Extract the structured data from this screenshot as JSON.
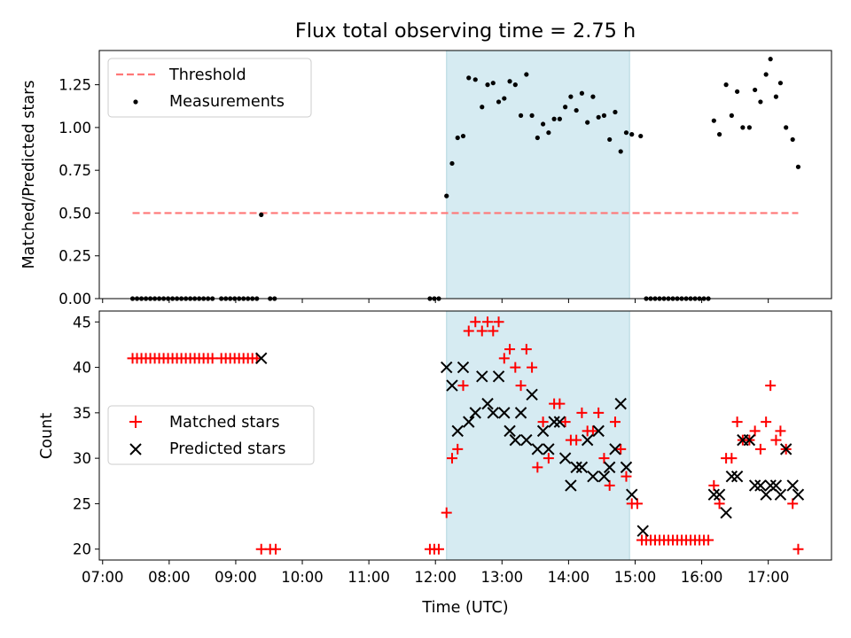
{
  "title": "Flux total observing time = 2.75 h",
  "chart_data": [
    {
      "type": "scatter",
      "panel": "top",
      "ylabel": "Matched/Predicted stars",
      "ylim": [
        0,
        1.45
      ],
      "yticks": [
        0.0,
        0.25,
        0.5,
        0.75,
        1.0,
        1.25
      ],
      "ytick_labels": [
        "0.00",
        "0.25",
        "0.50",
        "0.75",
        "1.00",
        "1.25"
      ],
      "threshold": {
        "name": "Threshold",
        "value": 0.5,
        "x_start": "07:27",
        "x_end": "17:27",
        "color": "#ff7777"
      },
      "shaded_interval": {
        "start": "12:10",
        "end": "14:55",
        "color": "#add8e6"
      },
      "legend": {
        "position": "top-left",
        "items": [
          "Threshold",
          "Measurements"
        ]
      },
      "series": [
        {
          "name": "Measurements",
          "color": "#000000",
          "points": [
            [
              "07:27",
              0
            ],
            [
              "07:31",
              0
            ],
            [
              "07:35",
              0
            ],
            [
              "07:39",
              0
            ],
            [
              "07:43",
              0
            ],
            [
              "07:47",
              0
            ],
            [
              "07:51",
              0
            ],
            [
              "07:55",
              0
            ],
            [
              "07:59",
              0
            ],
            [
              "08:03",
              0
            ],
            [
              "08:07",
              0
            ],
            [
              "08:11",
              0
            ],
            [
              "08:15",
              0
            ],
            [
              "08:19",
              0
            ],
            [
              "08:23",
              0
            ],
            [
              "08:27",
              0
            ],
            [
              "08:31",
              0
            ],
            [
              "08:35",
              0
            ],
            [
              "08:39",
              0
            ],
            [
              "08:47",
              0
            ],
            [
              "08:51",
              0
            ],
            [
              "08:55",
              0
            ],
            [
              "08:59",
              0
            ],
            [
              "09:03",
              0
            ],
            [
              "09:07",
              0
            ],
            [
              "09:11",
              0
            ],
            [
              "09:15",
              0
            ],
            [
              "09:19",
              0
            ],
            [
              "09:23",
              0.49
            ],
            [
              "09:31",
              0
            ],
            [
              "09:35",
              0
            ],
            [
              "11:55",
              0
            ],
            [
              "11:59",
              0
            ],
            [
              "12:03",
              0
            ],
            [
              "12:10",
              0.6
            ],
            [
              "12:15",
              0.79
            ],
            [
              "12:20",
              0.94
            ],
            [
              "12:25",
              0.95
            ],
            [
              "12:30",
              1.29
            ],
            [
              "12:36",
              1.28
            ],
            [
              "12:42",
              1.12
            ],
            [
              "12:47",
              1.25
            ],
            [
              "12:52",
              1.26
            ],
            [
              "12:57",
              1.15
            ],
            [
              "13:02",
              1.17
            ],
            [
              "13:07",
              1.27
            ],
            [
              "13:12",
              1.25
            ],
            [
              "13:17",
              1.07
            ],
            [
              "13:22",
              1.31
            ],
            [
              "13:27",
              1.07
            ],
            [
              "13:32",
              0.94
            ],
            [
              "13:37",
              1.02
            ],
            [
              "13:42",
              0.97
            ],
            [
              "13:47",
              1.05
            ],
            [
              "13:52",
              1.05
            ],
            [
              "13:57",
              1.12
            ],
            [
              "14:02",
              1.18
            ],
            [
              "14:07",
              1.1
            ],
            [
              "14:12",
              1.2
            ],
            [
              "14:17",
              1.03
            ],
            [
              "14:22",
              1.18
            ],
            [
              "14:27",
              1.06
            ],
            [
              "14:32",
              1.07
            ],
            [
              "14:37",
              0.93
            ],
            [
              "14:42",
              1.09
            ],
            [
              "14:47",
              0.86
            ],
            [
              "14:52",
              0.97
            ],
            [
              "14:57",
              0.96
            ],
            [
              "15:05",
              0.95
            ],
            [
              "15:10",
              0
            ],
            [
              "15:14",
              0
            ],
            [
              "15:18",
              0
            ],
            [
              "15:22",
              0
            ],
            [
              "15:26",
              0
            ],
            [
              "15:30",
              0
            ],
            [
              "15:34",
              0
            ],
            [
              "15:38",
              0
            ],
            [
              "15:42",
              0
            ],
            [
              "15:46",
              0
            ],
            [
              "15:50",
              0
            ],
            [
              "15:54",
              0
            ],
            [
              "15:58",
              0
            ],
            [
              "16:02",
              0
            ],
            [
              "16:06",
              0
            ],
            [
              "16:11",
              1.04
            ],
            [
              "16:16",
              0.96
            ],
            [
              "16:22",
              1.25
            ],
            [
              "16:27",
              1.07
            ],
            [
              "16:32",
              1.21
            ],
            [
              "16:37",
              1.0
            ],
            [
              "16:43",
              1.0
            ],
            [
              "16:48",
              1.22
            ],
            [
              "16:53",
              1.15
            ],
            [
              "16:58",
              1.31
            ],
            [
              "17:02",
              1.4
            ],
            [
              "17:07",
              1.18
            ],
            [
              "17:11",
              1.26
            ],
            [
              "17:16",
              1.0
            ],
            [
              "17:22",
              0.93
            ],
            [
              "17:27",
              0.77
            ]
          ]
        }
      ]
    },
    {
      "type": "scatter",
      "panel": "bottom",
      "xlabel": "Time (UTC)",
      "ylabel": "Count",
      "xlim": [
        "06:57",
        "17:57"
      ],
      "ylim": [
        18.8,
        46.2
      ],
      "xticks": [
        "07:00",
        "08:00",
        "09:00",
        "10:00",
        "11:00",
        "12:00",
        "13:00",
        "14:00",
        "15:00",
        "16:00",
        "17:00"
      ],
      "yticks": [
        20,
        25,
        30,
        35,
        40,
        45
      ],
      "ytick_labels": [
        "20",
        "25",
        "30",
        "35",
        "40",
        "45"
      ],
      "shaded_interval": {
        "start": "12:10",
        "end": "14:55",
        "color": "#add8e6"
      },
      "legend": {
        "position": "center-left",
        "items": [
          "Matched stars",
          "Predicted stars"
        ]
      },
      "series": [
        {
          "name": "Matched stars",
          "marker": "+",
          "color": "#ff0000",
          "points": [
            [
              "07:27",
              41
            ],
            [
              "07:31",
              41
            ],
            [
              "07:35",
              41
            ],
            [
              "07:39",
              41
            ],
            [
              "07:43",
              41
            ],
            [
              "07:47",
              41
            ],
            [
              "07:51",
              41
            ],
            [
              "07:55",
              41
            ],
            [
              "07:59",
              41
            ],
            [
              "08:03",
              41
            ],
            [
              "08:07",
              41
            ],
            [
              "08:11",
              41
            ],
            [
              "08:15",
              41
            ],
            [
              "08:19",
              41
            ],
            [
              "08:23",
              41
            ],
            [
              "08:27",
              41
            ],
            [
              "08:31",
              41
            ],
            [
              "08:35",
              41
            ],
            [
              "08:39",
              41
            ],
            [
              "08:47",
              41
            ],
            [
              "08:51",
              41
            ],
            [
              "08:55",
              41
            ],
            [
              "08:59",
              41
            ],
            [
              "09:03",
              41
            ],
            [
              "09:07",
              41
            ],
            [
              "09:11",
              41
            ],
            [
              "09:15",
              41
            ],
            [
              "09:19",
              41
            ],
            [
              "09:23",
              20
            ],
            [
              "09:31",
              20
            ],
            [
              "09:36",
              20
            ],
            [
              "11:55",
              20
            ],
            [
              "11:59",
              20
            ],
            [
              "12:03",
              20
            ],
            [
              "12:10",
              24
            ],
            [
              "12:15",
              30
            ],
            [
              "12:20",
              31
            ],
            [
              "12:25",
              38
            ],
            [
              "12:30",
              44
            ],
            [
              "12:36",
              45
            ],
            [
              "12:42",
              44
            ],
            [
              "12:47",
              45
            ],
            [
              "12:52",
              44
            ],
            [
              "12:57",
              45
            ],
            [
              "13:02",
              41
            ],
            [
              "13:07",
              42
            ],
            [
              "13:12",
              40
            ],
            [
              "13:17",
              38
            ],
            [
              "13:22",
              42
            ],
            [
              "13:27",
              40
            ],
            [
              "13:32",
              29
            ],
            [
              "13:37",
              34
            ],
            [
              "13:42",
              30
            ],
            [
              "13:47",
              36
            ],
            [
              "13:52",
              36
            ],
            [
              "13:57",
              34
            ],
            [
              "14:02",
              32
            ],
            [
              "14:07",
              32
            ],
            [
              "14:12",
              35
            ],
            [
              "14:17",
              33
            ],
            [
              "14:22",
              33
            ],
            [
              "14:27",
              35
            ],
            [
              "14:32",
              30
            ],
            [
              "14:37",
              27
            ],
            [
              "14:42",
              34
            ],
            [
              "14:47",
              31
            ],
            [
              "14:52",
              28
            ],
            [
              "14:57",
              25
            ],
            [
              "15:02",
              25
            ],
            [
              "15:06",
              21
            ],
            [
              "15:10",
              21
            ],
            [
              "15:14",
              21
            ],
            [
              "15:18",
              21
            ],
            [
              "15:22",
              21
            ],
            [
              "15:26",
              21
            ],
            [
              "15:30",
              21
            ],
            [
              "15:34",
              21
            ],
            [
              "15:38",
              21
            ],
            [
              "15:42",
              21
            ],
            [
              "15:46",
              21
            ],
            [
              "15:50",
              21
            ],
            [
              "15:54",
              21
            ],
            [
              "15:58",
              21
            ],
            [
              "16:02",
              21
            ],
            [
              "16:06",
              21
            ],
            [
              "16:11",
              27
            ],
            [
              "16:16",
              25
            ],
            [
              "16:22",
              30
            ],
            [
              "16:27",
              30
            ],
            [
              "16:32",
              34
            ],
            [
              "16:37",
              32
            ],
            [
              "16:43",
              32
            ],
            [
              "16:48",
              33
            ],
            [
              "16:53",
              31
            ],
            [
              "16:58",
              34
            ],
            [
              "17:02",
              38
            ],
            [
              "17:07",
              32
            ],
            [
              "17:11",
              33
            ],
            [
              "17:16",
              31
            ],
            [
              "17:22",
              25
            ],
            [
              "17:27",
              20
            ]
          ]
        },
        {
          "name": "Predicted stars",
          "marker": "x",
          "color": "#000000",
          "points": [
            [
              "09:23",
              41
            ],
            [
              "12:10",
              40
            ],
            [
              "12:15",
              38
            ],
            [
              "12:20",
              33
            ],
            [
              "12:25",
              40
            ],
            [
              "12:30",
              34
            ],
            [
              "12:36",
              35
            ],
            [
              "12:42",
              39
            ],
            [
              "12:47",
              36
            ],
            [
              "12:52",
              35
            ],
            [
              "12:57",
              39
            ],
            [
              "13:02",
              35
            ],
            [
              "13:07",
              33
            ],
            [
              "13:12",
              32
            ],
            [
              "13:17",
              35
            ],
            [
              "13:22",
              32
            ],
            [
              "13:27",
              37
            ],
            [
              "13:32",
              31
            ],
            [
              "13:37",
              33
            ],
            [
              "13:42",
              31
            ],
            [
              "13:47",
              34
            ],
            [
              "13:52",
              34
            ],
            [
              "13:57",
              30
            ],
            [
              "14:02",
              27
            ],
            [
              "14:07",
              29
            ],
            [
              "14:12",
              29
            ],
            [
              "14:17",
              32
            ],
            [
              "14:22",
              28
            ],
            [
              "14:27",
              33
            ],
            [
              "14:32",
              28
            ],
            [
              "14:37",
              29
            ],
            [
              "14:42",
              31
            ],
            [
              "14:47",
              36
            ],
            [
              "14:52",
              29
            ],
            [
              "14:57",
              26
            ],
            [
              "15:07",
              22
            ],
            [
              "16:11",
              26
            ],
            [
              "16:16",
              26
            ],
            [
              "16:22",
              24
            ],
            [
              "16:27",
              28
            ],
            [
              "16:32",
              28
            ],
            [
              "16:37",
              32
            ],
            [
              "16:43",
              32
            ],
            [
              "16:48",
              27
            ],
            [
              "16:53",
              27
            ],
            [
              "16:58",
              26
            ],
            [
              "17:02",
              27
            ],
            [
              "17:07",
              27
            ],
            [
              "17:11",
              26
            ],
            [
              "17:16",
              31
            ],
            [
              "17:22",
              27
            ],
            [
              "17:27",
              26
            ]
          ]
        }
      ]
    }
  ]
}
